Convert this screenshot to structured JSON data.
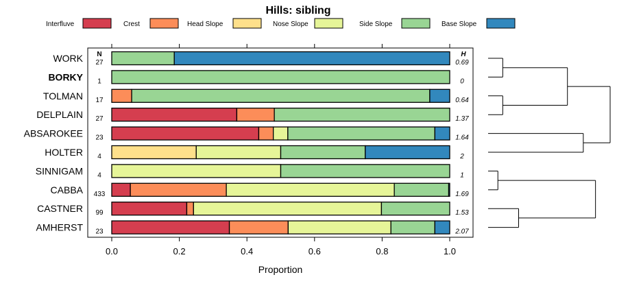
{
  "chart_data": {
    "type": "stacked-bar",
    "title": "Hills: sibling",
    "xlabel": "Proportion",
    "ylabel": "",
    "xlim": [
      0,
      1
    ],
    "x_ticks": [
      "0.0",
      "0.2",
      "0.4",
      "0.6",
      "0.8",
      "1.0"
    ],
    "x_tick_values": [
      0,
      0.2,
      0.4,
      0.6,
      0.8,
      1.0
    ],
    "n_header": "N",
    "h_header": "H",
    "legend": [
      {
        "name": "Interfluve",
        "color": "#d53e4f"
      },
      {
        "name": "Crest",
        "color": "#fc8d59"
      },
      {
        "name": "Head Slope",
        "color": "#fee08b"
      },
      {
        "name": "Nose Slope",
        "color": "#e6f598"
      },
      {
        "name": "Side Slope",
        "color": "#99d594"
      },
      {
        "name": "Base Slope",
        "color": "#3288bd"
      }
    ],
    "rows": [
      {
        "label": "WORK",
        "bold": false,
        "n": "27",
        "h": "0.69",
        "values": [
          0,
          0,
          0,
          0,
          0.185,
          0.815
        ]
      },
      {
        "label": "BORKY",
        "bold": true,
        "n": "1",
        "h": "0",
        "values": [
          0,
          0,
          0,
          0,
          1.0,
          0
        ]
      },
      {
        "label": "TOLMAN",
        "bold": false,
        "n": "17",
        "h": "0.64",
        "values": [
          0,
          0.059,
          0,
          0,
          0.882,
          0.059
        ]
      },
      {
        "label": "DELPLAIN",
        "bold": false,
        "n": "27",
        "h": "1.37",
        "values": [
          0.37,
          0.111,
          0,
          0,
          0.519,
          0
        ]
      },
      {
        "label": "ABSAROKEE",
        "bold": false,
        "n": "23",
        "h": "1.64",
        "values": [
          0.435,
          0.043,
          0,
          0.043,
          0.435,
          0.044
        ]
      },
      {
        "label": "HOLTER",
        "bold": false,
        "n": "4",
        "h": "2",
        "values": [
          0,
          0,
          0.25,
          0.25,
          0.25,
          0.25
        ]
      },
      {
        "label": "SINNIGAM",
        "bold": false,
        "n": "4",
        "h": "1",
        "values": [
          0,
          0,
          0,
          0.5,
          0.5,
          0
        ]
      },
      {
        "label": "CABBA",
        "bold": false,
        "n": "433",
        "h": "1.69",
        "values": [
          0.055,
          0.284,
          0,
          0.497,
          0.161,
          0.003
        ]
      },
      {
        "label": "CASTNER",
        "bold": false,
        "n": "99",
        "h": "1.53",
        "values": [
          0.222,
          0.02,
          0,
          0.556,
          0.202,
          0
        ]
      },
      {
        "label": "AMHERST",
        "bold": false,
        "n": "23",
        "h": "2.07",
        "values": [
          0.348,
          0.174,
          0,
          0.304,
          0.13,
          0.044
        ]
      }
    ],
    "dendrogram": {
      "merges": [
        {
          "a": 1,
          "b": 2,
          "height": 0.12
        },
        {
          "a": 3,
          "b": 4,
          "height": 0.12
        },
        {
          "a": 7,
          "b": 8,
          "height": 0.08
        },
        {
          "a": 9,
          "b": 10,
          "height": 0.25
        },
        {
          "a": 11,
          "b": 12,
          "height": 0.65
        },
        {
          "a": 5,
          "b": 6,
          "height": 0.78
        },
        {
          "a": 13,
          "b": 14,
          "height": 0.88
        },
        {
          "a": 15,
          "b": 16,
          "height": 1.0
        }
      ]
    }
  }
}
